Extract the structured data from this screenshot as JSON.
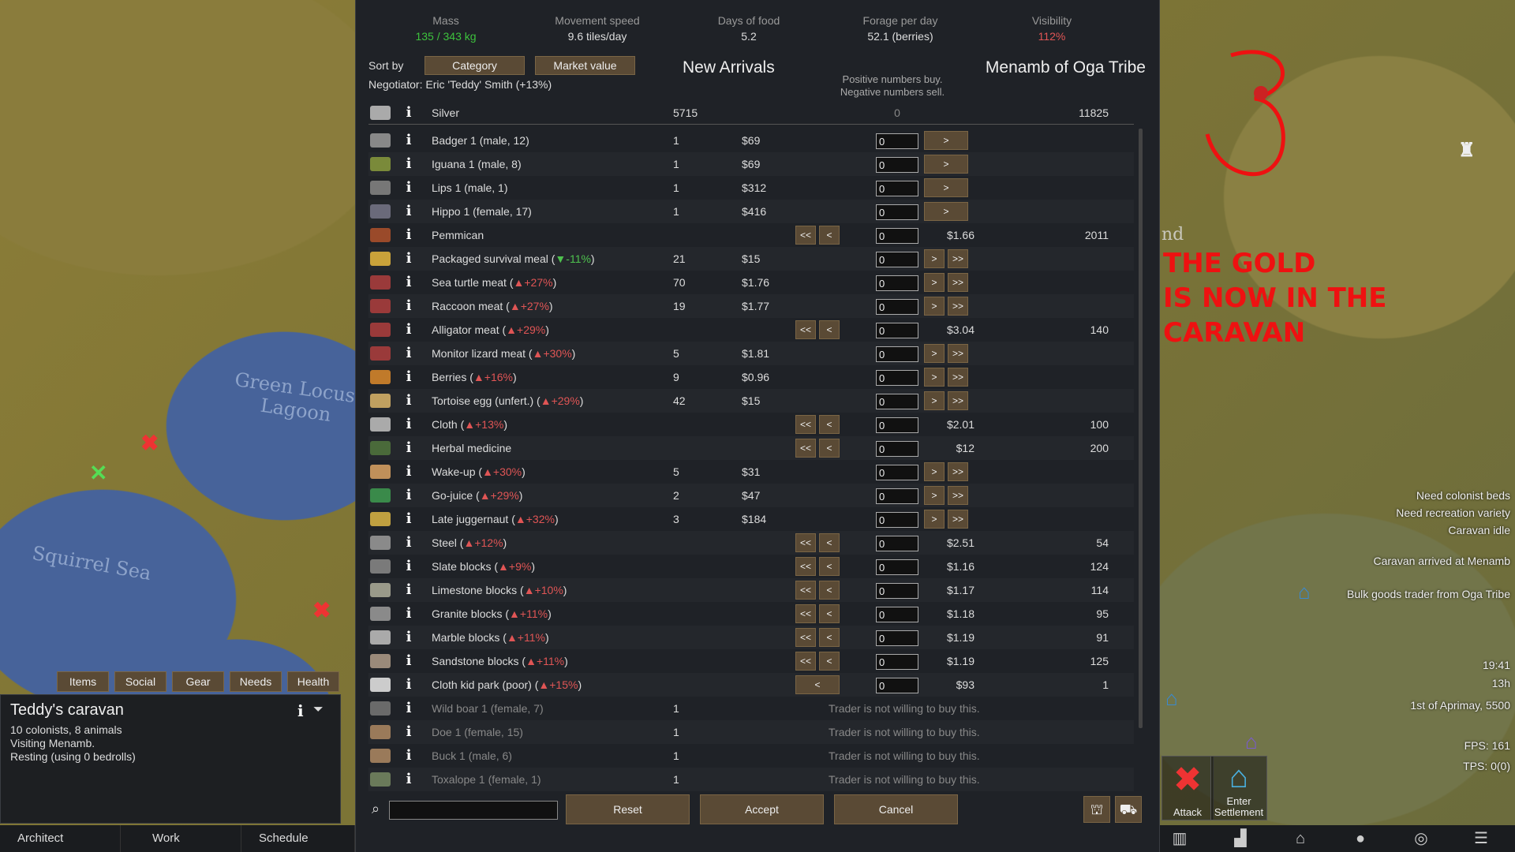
{
  "map": {
    "labels": {
      "lagoon": "Green Locust\nLagoon",
      "sea": "Squirrel Sea",
      "settlement_fragment": "nd"
    },
    "annotation": {
      "number": "3",
      "line1": "THE GOLD",
      "line2": "IS NOW IN THE CARAVAN"
    }
  },
  "stats": [
    {
      "label": "Mass",
      "value": "135 / 343 kg",
      "color": "#3dc23d"
    },
    {
      "label": "Movement speed",
      "value": "9.6 tiles/day",
      "color": "#dddddd"
    },
    {
      "label": "Days of food",
      "value": "5.2",
      "color": "#dddddd"
    },
    {
      "label": "Forage per day",
      "value": "52.1 (berries)",
      "color": "#dddddd"
    },
    {
      "label": "Visibility",
      "value": "112%",
      "color": "#e05555"
    }
  ],
  "sort": {
    "label": "Sort by",
    "category": "Category",
    "market_value": "Market value"
  },
  "negotiator": "Negotiator: Eric 'Teddy' Smith (+13%)",
  "left_title": "New Arrivals",
  "right_title": "Menamb of Oga Tribe",
  "pos_neg_line1": "Positive numbers buy.",
  "pos_neg_line2": "Negative numbers sell.",
  "silver": {
    "name": "Silver",
    "left": "5715",
    "qty": "0",
    "right": "11825"
  },
  "items": [
    {
      "name": "Badger 1 (male, 12)",
      "icon": "animal-icon",
      "color": "#888",
      "lcount": "1",
      "lprice": "$69",
      "qty": "0",
      "btns": [
        ">"
      ]
    },
    {
      "name": "Iguana 1 (male, 8)",
      "icon": "animal-icon",
      "color": "#7a8a3a",
      "lcount": "1",
      "lprice": "$69",
      "qty": "0",
      "btns": [
        ">"
      ]
    },
    {
      "name": "Lips 1 (male, 1)",
      "icon": "animal-icon",
      "color": "#777",
      "lcount": "1",
      "lprice": "$312",
      "qty": "0",
      "btns": [
        ">"
      ]
    },
    {
      "name": "Hippo 1 (female, 17)",
      "icon": "animal-icon",
      "color": "#6a6a7a",
      "lcount": "1",
      "lprice": "$416",
      "qty": "0",
      "btns": [
        ">"
      ]
    },
    {
      "name": "Pemmican",
      "icon": "food-icon",
      "color": "#9a4a2a",
      "qty": "0",
      "btns": [
        "<<",
        "<"
      ],
      "rprice": "$1.66",
      "rcount": "2011"
    },
    {
      "name": "Packaged survival meal",
      "mod": "▼-11%",
      "dir": "down",
      "icon": "food-icon",
      "color": "#c9a23a",
      "lcount": "21",
      "lprice": "$15",
      "qty": "0",
      "btns": [
        ">",
        ">>"
      ]
    },
    {
      "name": "Sea turtle meat",
      "mod": "▲+27%",
      "dir": "up",
      "icon": "meat-icon",
      "color": "#9a3a3a",
      "lcount": "70",
      "lprice": "$1.76",
      "qty": "0",
      "btns": [
        ">",
        ">>"
      ]
    },
    {
      "name": "Raccoon meat",
      "mod": "▲+27%",
      "dir": "up",
      "icon": "meat-icon",
      "color": "#9a3a3a",
      "lcount": "19",
      "lprice": "$1.77",
      "qty": "0",
      "btns": [
        ">",
        ">>"
      ]
    },
    {
      "name": "Alligator meat",
      "mod": "▲+29%",
      "dir": "up",
      "icon": "meat-icon",
      "color": "#9a3a3a",
      "qty": "0",
      "btns": [
        "<<",
        "<"
      ],
      "rprice": "$3.04",
      "rcount": "140"
    },
    {
      "name": "Monitor lizard meat",
      "mod": "▲+30%",
      "dir": "up",
      "icon": "meat-icon",
      "color": "#9a3a3a",
      "lcount": "5",
      "lprice": "$1.81",
      "qty": "0",
      "btns": [
        ">",
        ">>"
      ]
    },
    {
      "name": "Berries",
      "mod": "▲+16%",
      "dir": "up",
      "icon": "berries-icon",
      "color": "#c07a2a",
      "lcount": "9",
      "lprice": "$0.96",
      "qty": "0",
      "btns": [
        ">",
        ">>"
      ]
    },
    {
      "name": "Tortoise egg (unfert.)",
      "mod": "▲+29%",
      "dir": "up",
      "icon": "egg-icon",
      "color": "#c0a060",
      "lcount": "42",
      "lprice": "$15",
      "qty": "0",
      "btns": [
        ">",
        ">>"
      ]
    },
    {
      "name": "Cloth",
      "mod": "▲+13%",
      "dir": "up",
      "icon": "cloth-icon",
      "color": "#aaaaaa",
      "qty": "0",
      "btns": [
        "<<",
        "<"
      ],
      "rprice": "$2.01",
      "rcount": "100"
    },
    {
      "name": "Herbal medicine",
      "icon": "medicine-icon",
      "color": "#4a6a3a",
      "qty": "0",
      "btns": [
        "<<",
        "<"
      ],
      "rprice": "$12",
      "rcount": "200"
    },
    {
      "name": "Wake-up",
      "mod": "▲+30%",
      "dir": "up",
      "icon": "drug-icon",
      "color": "#c0905a",
      "lcount": "5",
      "lprice": "$31",
      "qty": "0",
      "btns": [
        ">",
        ">>"
      ]
    },
    {
      "name": "Go-juice",
      "mod": "▲+29%",
      "dir": "up",
      "icon": "drug-icon",
      "color": "#3a8a4a",
      "lcount": "2",
      "lprice": "$47",
      "qty": "0",
      "btns": [
        ">",
        ">>"
      ]
    },
    {
      "name": "Late juggernaut",
      "mod": "▲+32%",
      "dir": "up",
      "icon": "drug-icon",
      "color": "#c0a040",
      "lcount": "3",
      "lprice": "$184",
      "qty": "0",
      "btns": [
        ">",
        ">>"
      ]
    },
    {
      "name": "Steel",
      "mod": "▲+12%",
      "dir": "up",
      "icon": "steel-icon",
      "color": "#8a8a8a",
      "qty": "0",
      "btns": [
        "<<",
        "<"
      ],
      "rprice": "$2.51",
      "rcount": "54"
    },
    {
      "name": "Slate blocks",
      "mod": "▲+9%",
      "dir": "up",
      "icon": "blocks-icon",
      "color": "#7a7a7a",
      "qty": "0",
      "btns": [
        "<<",
        "<"
      ],
      "rprice": "$1.16",
      "rcount": "124"
    },
    {
      "name": "Limestone blocks",
      "mod": "▲+10%",
      "dir": "up",
      "icon": "blocks-icon",
      "color": "#9a9a8a",
      "qty": "0",
      "btns": [
        "<<",
        "<"
      ],
      "rprice": "$1.17",
      "rcount": "114"
    },
    {
      "name": "Granite blocks",
      "mod": "▲+11%",
      "dir": "up",
      "icon": "blocks-icon",
      "color": "#8a8a8a",
      "qty": "0",
      "btns": [
        "<<",
        "<"
      ],
      "rprice": "$1.18",
      "rcount": "95"
    },
    {
      "name": "Marble blocks",
      "mod": "▲+11%",
      "dir": "up",
      "icon": "blocks-icon",
      "color": "#aaaaaa",
      "qty": "0",
      "btns": [
        "<<",
        "<"
      ],
      "rprice": "$1.19",
      "rcount": "91"
    },
    {
      "name": "Sandstone blocks",
      "mod": "▲+11%",
      "dir": "up",
      "icon": "blocks-icon",
      "color": "#9a8a7a",
      "qty": "0",
      "btns": [
        "<<",
        "<"
      ],
      "rprice": "$1.19",
      "rcount": "125"
    },
    {
      "name": "Cloth kid park (poor)",
      "mod": "▲+15%",
      "dir": "up",
      "icon": "apparel-icon",
      "color": "#cccccc",
      "qty": "0",
      "btns": [
        "<"
      ],
      "rprice": "$93",
      "rcount": "1"
    },
    {
      "name": "Wild boar 1 (female, 7)",
      "icon": "animal-icon",
      "color": "#6a6a6a",
      "lcount": "1",
      "msg": "Trader is not willing to buy this.",
      "disabled": true
    },
    {
      "name": "Doe 1 (female, 15)",
      "icon": "animal-icon",
      "color": "#9a7a5a",
      "lcount": "1",
      "msg": "Trader is not willing to buy this.",
      "disabled": true
    },
    {
      "name": "Buck 1 (male, 6)",
      "icon": "animal-icon",
      "color": "#9a7a5a",
      "lcount": "1",
      "msg": "Trader is not willing to buy this.",
      "disabled": true
    },
    {
      "name": "Toxalope 1 (female, 1)",
      "icon": "animal-icon",
      "color": "#6a7a5a",
      "lcount": "1",
      "msg": "Trader is not willing to buy this.",
      "disabled": true
    }
  ],
  "buttons": {
    "reset": "Reset",
    "accept": "Accept",
    "cancel": "Cancel"
  },
  "search": {
    "placeholder": "",
    "value": ""
  },
  "caravan": {
    "tabs": [
      "Items",
      "Social",
      "Gear",
      "Needs",
      "Health"
    ],
    "title": "Teddy's caravan",
    "line1": "10 colonists, 8 animals",
    "line2": "Visiting Menamb.",
    "line3": "Resting (using 0 bedrolls)"
  },
  "bottom_bar": [
    "Architect",
    "Work",
    "Schedule"
  ],
  "alerts": [
    "Need colonist beds",
    "Need recreation variety",
    "Caravan idle",
    "Caravan arrived at Menamb",
    "Bulk goods trader from Oga Tribe"
  ],
  "hud": {
    "time": "19:41",
    "hours": "13h",
    "date": "1st of Aprimay, 5500",
    "fps": "FPS: 161",
    "tps": "TPS: 0(0)"
  },
  "map_buttons": {
    "attack": "Attack",
    "enter": "Enter\nSettlement"
  }
}
